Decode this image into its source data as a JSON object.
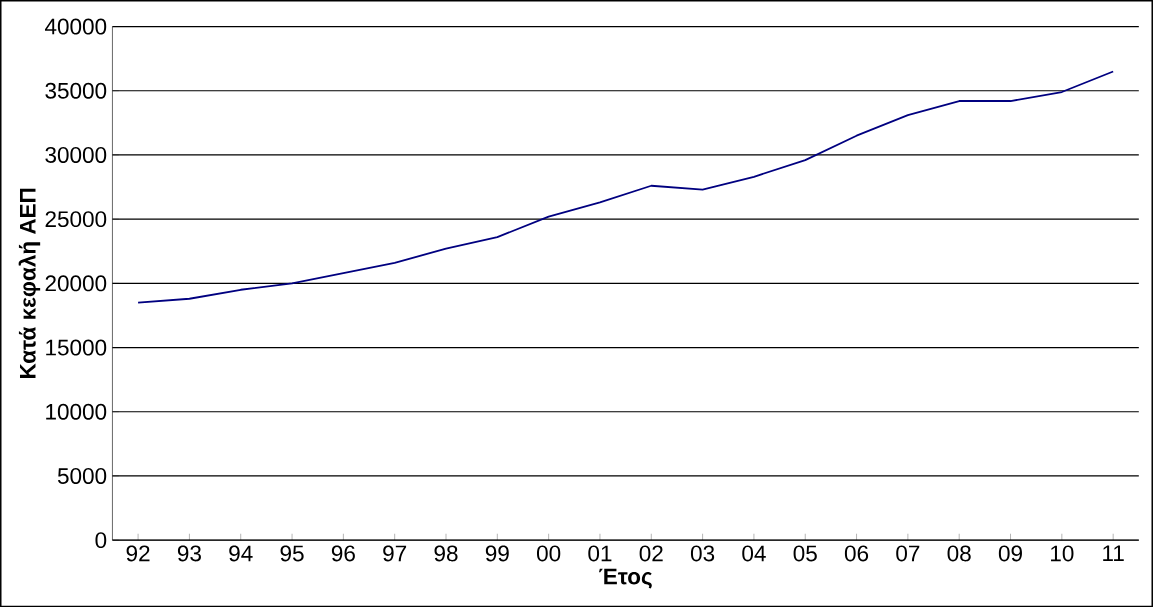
{
  "chart_data": {
    "type": "line",
    "xlabel": "Έτος",
    "ylabel": "Κατά κεφαλή ΑΕΠ",
    "categories": [
      "92",
      "93",
      "94",
      "95",
      "96",
      "97",
      "98",
      "99",
      "00",
      "01",
      "02",
      "03",
      "04",
      "05",
      "06",
      "07",
      "08",
      "09",
      "10",
      "11"
    ],
    "series": [
      {
        "color": "#000080",
        "values": [
          18500,
          18800,
          19500,
          20000,
          20800,
          21600,
          22700,
          23600,
          25200,
          26300,
          27600,
          27300,
          28300,
          29600,
          31500,
          33100,
          34200,
          34200,
          34900,
          36500
        ]
      }
    ],
    "ylim": [
      0,
      40000
    ],
    "yticks": [
      0,
      5000,
      10000,
      15000,
      20000,
      25000,
      30000,
      35000,
      40000
    ],
    "grid": "y",
    "marker": "none",
    "line_style": "solid"
  }
}
